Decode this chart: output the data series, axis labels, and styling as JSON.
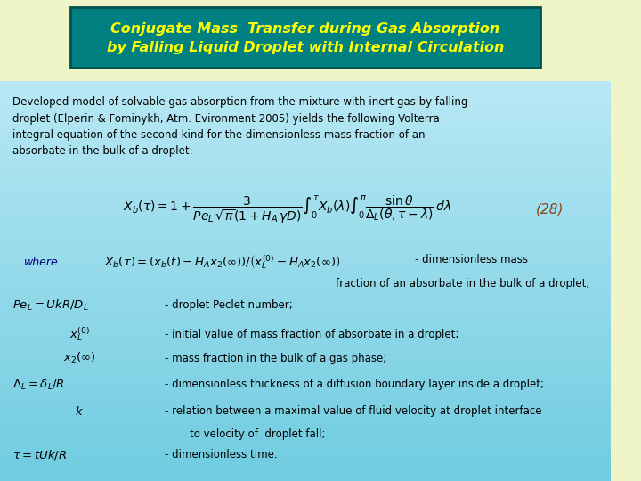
{
  "bg_color": "#f0f5c8",
  "title_bg_color": "#008080",
  "title_text_color": "#ffff00",
  "title_line1": "Conjugate Mass  Transfer during Gas Absorption",
  "title_line2": "by Falling Liquid Droplet with Internal Circulation",
  "body_text_color": "#000080",
  "body_bg_gradient_top": "#c8e8f0",
  "body_bg_gradient_bottom": "#80d8e8",
  "paragraph": "Developed model of solvable gas absorption from the mixture with inert gas by falling\ndroplet (Elperin & Fominykh, Atm. Evironment 2005) yields the following Volterra\nintegral equation of the second kind for the dimensionless mass fraction of an\nabsorbate in the bulk of a droplet:",
  "eq_number": "(28)",
  "where_text": "- dimensionless mass\nfraction of an absorbate in the bulk of a droplet;",
  "definitions": [
    {
      "symbol": "$Pe_L = UkR/D_L$",
      "desc": "- droplet Peclet number;"
    },
    {
      "symbol": "$x_L^{(0)}$",
      "desc": "- initial value of mass fraction of absorbate in a droplet;"
    },
    {
      "symbol": "$x_2(\\infty)$",
      "desc": "- mass fraction in the bulk of a gas phase;"
    },
    {
      "symbol": "$\\Delta_L = \\delta_L / R$",
      "desc": "- dimensionless thickness of a diffusion boundary layer inside a droplet;"
    },
    {
      "symbol": "$k$",
      "desc": "- relation between a maximal value of fluid velocity at droplet interface\nto velocity of  droplet fall;"
    },
    {
      "symbol": "$\\tau = tUk/R$",
      "desc": "- dimensionless time."
    }
  ]
}
